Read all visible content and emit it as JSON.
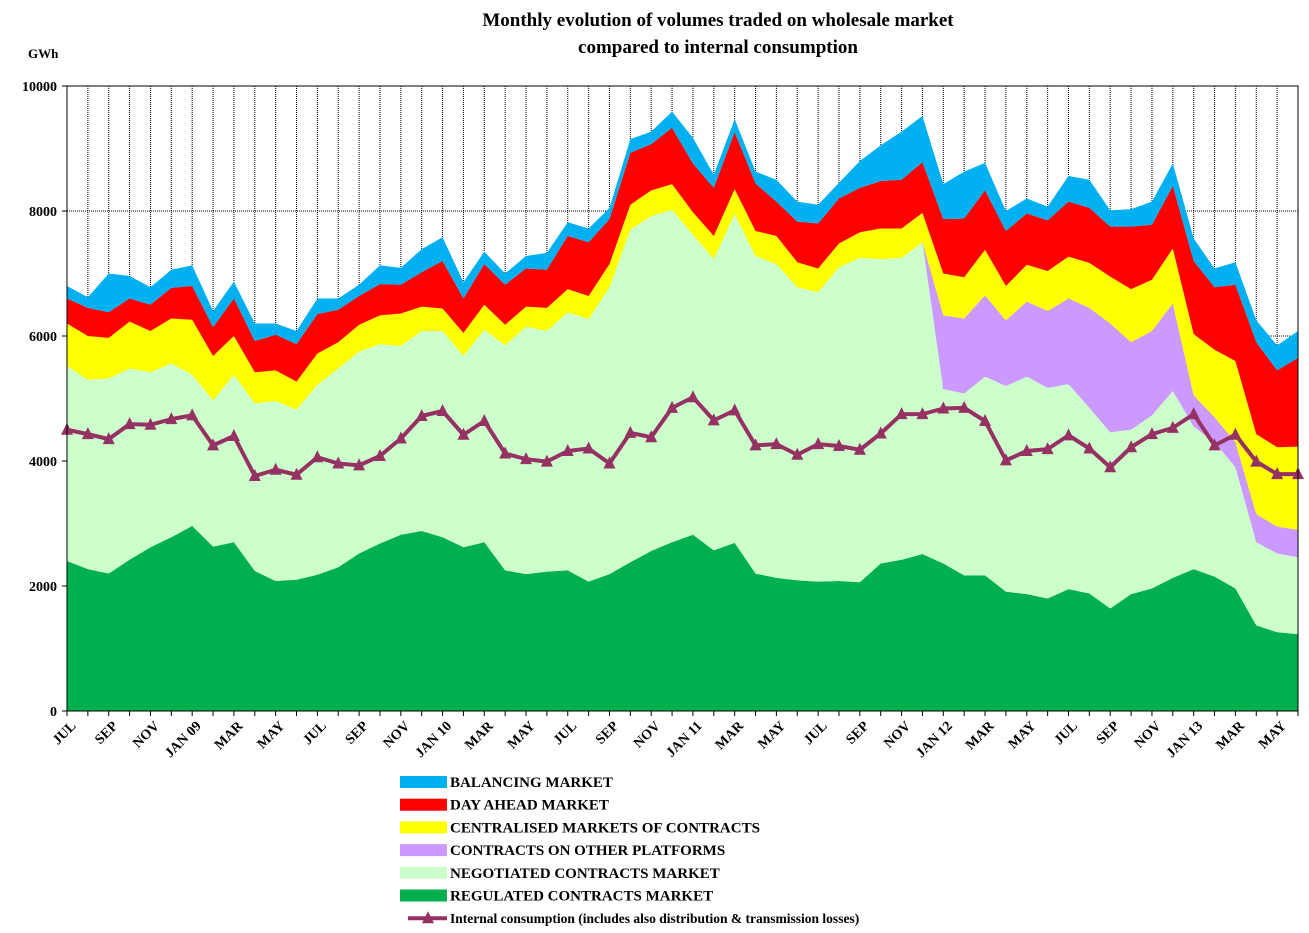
{
  "chart_data": {
    "type": "stacked-area",
    "title": [
      "Monthly evolution of volumes traded on wholesale market",
      "compared to internal consumption"
    ],
    "y_label": "GWh",
    "categories": [
      "JUL",
      null,
      "SEP",
      null,
      "NOV",
      null,
      "JAN 09",
      null,
      "MAR",
      null,
      "MAY",
      null,
      "JUL",
      null,
      "SEP",
      null,
      "NOV",
      null,
      "JAN 10",
      null,
      "MAR",
      null,
      "MAY",
      null,
      "JUL",
      null,
      "SEP",
      null,
      "NOV",
      null,
      "JAN 11",
      null,
      "MAR",
      null,
      "MAY",
      null,
      "JUL",
      null,
      "SEP",
      null,
      "NOV",
      null,
      "JAN 12",
      null,
      "MAR",
      null,
      "MAY",
      null,
      "JUL",
      null,
      "SEP",
      null,
      "NOV",
      null,
      "JAN 13",
      null,
      "MAR",
      null,
      "MAY",
      null
    ],
    "ylim": [
      0,
      10000
    ],
    "yticks": [
      0,
      2000,
      4000,
      6000,
      8000,
      10000
    ],
    "grid": true,
    "series": [
      {
        "name": "BALANCING MARKET",
        "color": "#00b0f0",
        "type": "area",
        "values": [
          200,
          170,
          620,
          360,
          280,
          290,
          330,
          260,
          270,
          280,
          180,
          210,
          250,
          180,
          180,
          300,
          270,
          370,
          380,
          260,
          200,
          180,
          200,
          270,
          220,
          220,
          180,
          220,
          200,
          260,
          410,
          210,
          210,
          190,
          350,
          320,
          300,
          250,
          430,
          570,
          770,
          740,
          560,
          750,
          440,
          320,
          240,
          220,
          410,
          450,
          260,
          280,
          370,
          360,
          360,
          300,
          360,
          350,
          400,
          430
        ]
      },
      {
        "name": "DAY AHEAD MARKET",
        "color": "#ff0000",
        "type": "area",
        "values": [
          400,
          450,
          410,
          370,
          420,
          490,
          540,
          460,
          600,
          500,
          570,
          600,
          630,
          520,
          460,
          500,
          460,
          550,
          760,
          550,
          650,
          640,
          610,
          610,
          850,
          860,
          720,
          830,
          740,
          900,
          780,
          770,
          910,
          760,
          550,
          650,
          720,
          720,
          710,
          760,
          780,
          810,
          870,
          940,
          950,
          880,
          820,
          810,
          880,
          880,
          800,
          1000,
          880,
          1000,
          1170,
          1000,
          1220,
          1470,
          1230,
          1420
        ]
      },
      {
        "name": "CENTRALISED MARKETS OF CONTRACTS",
        "color": "#ffff00",
        "type": "area",
        "values": [
          680,
          700,
          650,
          750,
          660,
          720,
          880,
          710,
          620,
          500,
          490,
          450,
          500,
          420,
          430,
          460,
          520,
          390,
          360,
          370,
          400,
          330,
          320,
          370,
          370,
          370,
          370,
          400,
          410,
          410,
          360,
          370,
          400,
          400,
          450,
          400,
          380,
          380,
          410,
          490,
          470,
          470,
          670,
          660,
          730,
          550,
          590,
          640,
          670,
          720,
          750,
          850,
          820,
          880,
          980,
          1080,
          1300,
          1280,
          1270,
          1330
        ]
      },
      {
        "name": "CONTRACTS ON OTHER PLATFORMS",
        "color": "#cc99ff",
        "type": "area",
        "values": [
          0,
          0,
          0,
          0,
          0,
          0,
          0,
          0,
          0,
          0,
          0,
          0,
          0,
          0,
          0,
          0,
          0,
          0,
          0,
          0,
          0,
          0,
          0,
          0,
          0,
          0,
          0,
          0,
          0,
          0,
          0,
          0,
          0,
          0,
          0,
          0,
          0,
          0,
          0,
          0,
          0,
          0,
          1180,
          1200,
          1300,
          1050,
          1200,
          1230,
          1370,
          1600,
          1740,
          1400,
          1350,
          1400,
          500,
          400,
          400,
          450,
          430,
          440
        ]
      },
      {
        "name": "NEGOTIATED CONTRACTS MARKET",
        "color": "#ccffcc",
        "type": "area",
        "values": [
          3120,
          3030,
          3120,
          3060,
          2800,
          2780,
          2420,
          2340,
          2680,
          2680,
          2880,
          2720,
          3040,
          3180,
          3230,
          3190,
          3020,
          3200,
          3300,
          3060,
          3400,
          3600,
          3960,
          3850,
          4130,
          4200,
          4590,
          5320,
          5360,
          5320,
          4800,
          4660,
          5260,
          5080,
          5020,
          4690,
          4630,
          5020,
          5190,
          4870,
          4830,
          4990,
          2790,
          2910,
          3180,
          3290,
          3480,
          3370,
          3280,
          2970,
          2820,
          2630,
          2770,
          2990,
          2280,
          2150,
          1940,
          1330,
          1260,
          1230
        ]
      },
      {
        "name": "REGULATED CONTRACTS MARKET",
        "color": "#00b050",
        "type": "area",
        "values": [
          2400,
          2270,
          2200,
          2420,
          2620,
          2780,
          2960,
          2630,
          2700,
          2240,
          2080,
          2100,
          2180,
          2300,
          2520,
          2680,
          2820,
          2880,
          2780,
          2620,
          2700,
          2250,
          2190,
          2230,
          2250,
          2070,
          2190,
          2380,
          2560,
          2700,
          2820,
          2570,
          2690,
          2200,
          2130,
          2090,
          2070,
          2080,
          2060,
          2360,
          2420,
          2510,
          2360,
          2170,
          2170,
          1910,
          1870,
          1800,
          1950,
          1880,
          1640,
          1870,
          1960,
          2130,
          2270,
          2150,
          1960,
          1370,
          1260,
          1230
        ]
      },
      {
        "name": "Internal consumption (includes also distribution & transmission losses)",
        "color": "#953163",
        "type": "line",
        "values": [
          4500,
          4430,
          4350,
          4590,
          4580,
          4670,
          4730,
          4250,
          4400,
          3760,
          3860,
          3780,
          4060,
          3960,
          3930,
          4080,
          4360,
          4720,
          4800,
          4420,
          4640,
          4120,
          4030,
          3990,
          4160,
          4200,
          3960,
          4450,
          4380,
          4850,
          5020,
          4650,
          4810,
          4250,
          4270,
          4100,
          4270,
          4240,
          4180,
          4440,
          4750,
          4750,
          4840,
          4850,
          4640,
          4010,
          4160,
          4190,
          4410,
          4200,
          3900,
          4220,
          4430,
          4530,
          4750,
          4250,
          4420,
          3990,
          3790,
          3790
        ]
      }
    ]
  }
}
